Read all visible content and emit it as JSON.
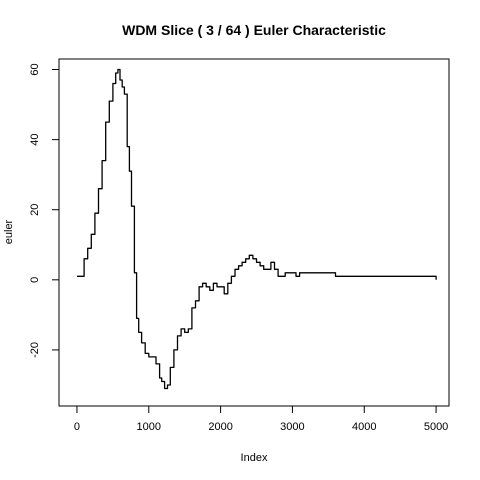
{
  "chart_data": {
    "type": "line",
    "title": "WDM Slice ( 3 / 64 ) Euler Characteristic",
    "xlabel": "Index",
    "ylabel": "euler",
    "xlim": [
      -250,
      5180
    ],
    "ylim": [
      -36,
      63
    ],
    "x_ticks": [
      0,
      1000,
      2000,
      3000,
      4000,
      5000
    ],
    "y_ticks": [
      -20,
      0,
      20,
      40,
      60
    ],
    "grid": false,
    "legend": "none",
    "line_color": "#000000",
    "series": [
      {
        "x": [
          0,
          50,
          100,
          150,
          200,
          250,
          300,
          350,
          400,
          450,
          500,
          540,
          570,
          600,
          630,
          660,
          700,
          730,
          760,
          800,
          830,
          860,
          900,
          950,
          1000,
          1050,
          1100,
          1150,
          1180,
          1220,
          1260,
          1300,
          1350,
          1400,
          1450,
          1500,
          1550,
          1600,
          1650,
          1700,
          1750,
          1800,
          1850,
          1900,
          1950,
          2000,
          2050,
          2100,
          2150,
          2200,
          2250,
          2300,
          2350,
          2400,
          2450,
          2500,
          2550,
          2600,
          2650,
          2700,
          2750,
          2800,
          2850,
          2900,
          2950,
          3000,
          3050,
          3100,
          3200,
          3300,
          3400,
          3500,
          3550,
          3600,
          3800,
          4000,
          4200,
          4400,
          4600,
          4800,
          5000
        ],
        "y": [
          1,
          1,
          6,
          9,
          13,
          19,
          26,
          34,
          45,
          51,
          56,
          59,
          60,
          57,
          55,
          53,
          38,
          31,
          21,
          2,
          -11,
          -15,
          -18,
          -21,
          -22,
          -22,
          -24,
          -28,
          -29,
          -31,
          -30,
          -25,
          -20,
          -16,
          -14,
          -15,
          -14,
          -8,
          -6,
          -2,
          -1,
          -2,
          -3,
          -1,
          -2,
          -2,
          -4,
          -1,
          1,
          3,
          4,
          5,
          6,
          7,
          6,
          5,
          4,
          3,
          3,
          5,
          3,
          1,
          1,
          2,
          2,
          2,
          1,
          2,
          2,
          2,
          2,
          2,
          2,
          1,
          1,
          1,
          1,
          1,
          1,
          1,
          0
        ]
      }
    ]
  }
}
